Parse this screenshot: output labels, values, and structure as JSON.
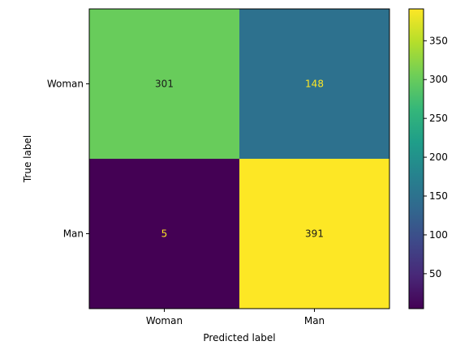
{
  "chart_data": {
    "type": "heatmap",
    "title": "",
    "xlabel": "Predicted label",
    "ylabel": "True label",
    "x_categories": [
      "Woman",
      "Man"
    ],
    "y_categories": [
      "Woman",
      "Man"
    ],
    "values": [
      [
        301,
        148
      ],
      [
        5,
        391
      ]
    ],
    "colormap": "viridis",
    "colorbar": {
      "min": 5,
      "max": 391,
      "ticks": [
        50,
        100,
        150,
        200,
        250,
        300,
        350
      ]
    },
    "text_colors": {
      "on_dark": "#fde725",
      "on_light": "#1a1a1a"
    },
    "grid": false
  }
}
